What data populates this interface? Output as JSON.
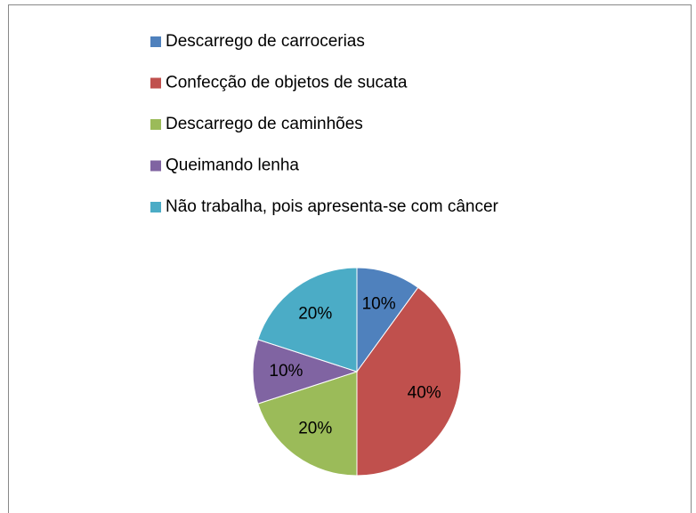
{
  "chart_data": {
    "type": "pie",
    "categories": [
      "Descarrego de carrocerias",
      "Confecção de objetos de sucata",
      "Descarrego de caminhões",
      "Queimando lenha",
      "Não trabalha, pois apresenta-se com câncer"
    ],
    "values": [
      10,
      40,
      20,
      10,
      20
    ],
    "value_labels": [
      "10%",
      "40%",
      "20%",
      "10%",
      "20%"
    ],
    "colors": [
      "#4f81bd",
      "#c0504d",
      "#9bbb59",
      "#8064a2",
      "#4bacc6"
    ],
    "legend": "top"
  }
}
